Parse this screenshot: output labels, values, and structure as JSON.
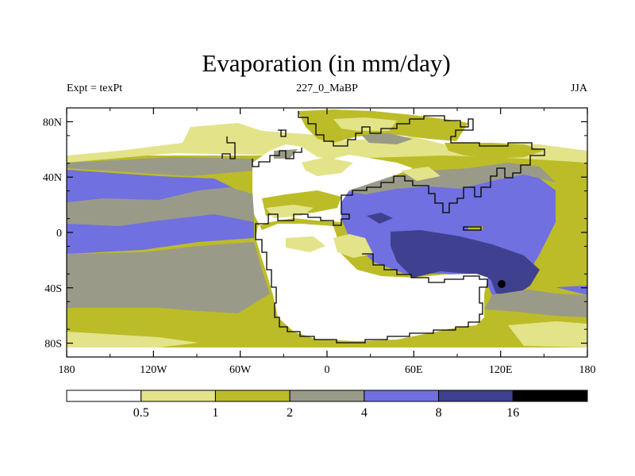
{
  "title": "Evaporation (in mm/day)",
  "subtitle_left": "Expt = texPt",
  "subtitle_center": "227_0_MaBP",
  "subtitle_right": "JJA",
  "lat_ticks": [
    {
      "value": 80,
      "label": "80N"
    },
    {
      "value": 40,
      "label": "40N"
    },
    {
      "value": 0,
      "label": "0"
    },
    {
      "value": -40,
      "label": "40S"
    },
    {
      "value": -80,
      "label": "80S"
    }
  ],
  "lon_ticks": [
    {
      "value": -180,
      "label": "180"
    },
    {
      "value": -120,
      "label": "120W"
    },
    {
      "value": -60,
      "label": "60W"
    },
    {
      "value": 0,
      "label": "0"
    },
    {
      "value": 60,
      "label": "60E"
    },
    {
      "value": 120,
      "label": "120E"
    },
    {
      "value": 180,
      "label": "180"
    }
  ],
  "colorbar": {
    "colors": [
      "#ffffff",
      "#e3e38a",
      "#bcbc28",
      "#9a9a88",
      "#7070e0",
      "#404090",
      "#000000"
    ],
    "labels": [
      "0.5",
      "1",
      "2",
      "4",
      "8",
      "16"
    ]
  }
}
